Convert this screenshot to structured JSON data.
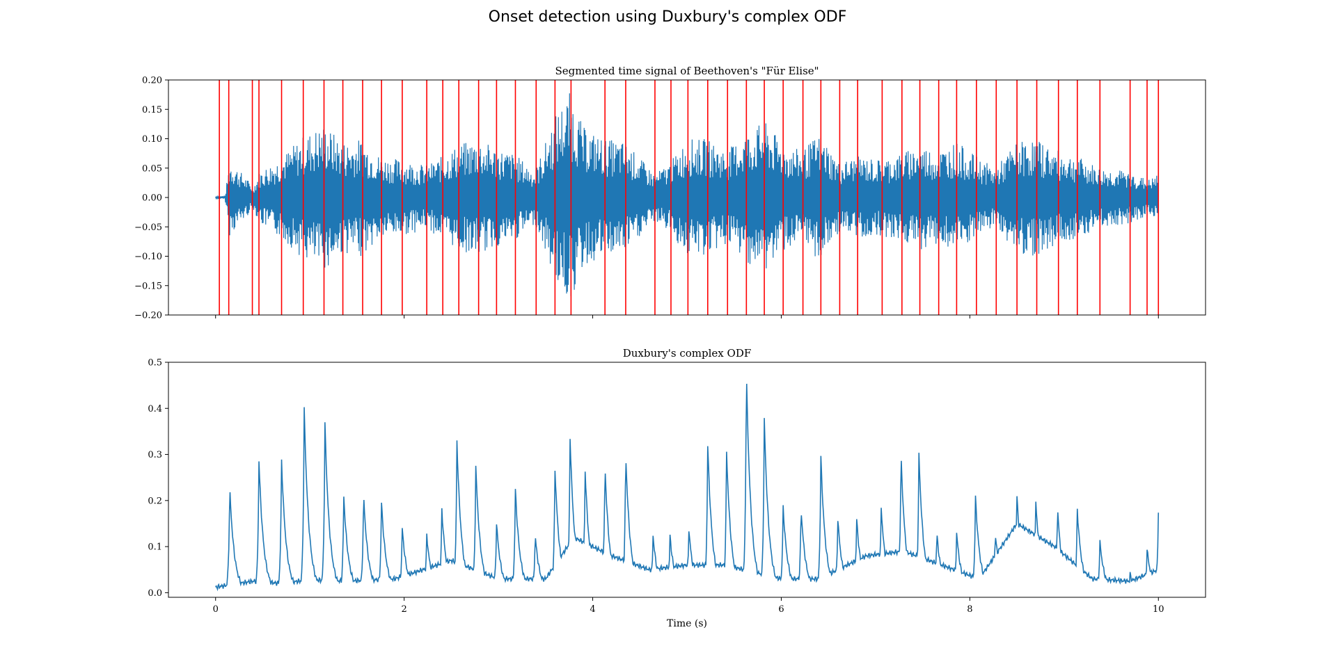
{
  "figure": {
    "suptitle": "Onset detection using Duxbury's complex ODF"
  },
  "chart_data": [
    {
      "type": "line",
      "title": "Segmented time signal of Beethoven's \"Für Elise\"",
      "xlabel": "",
      "ylabel": "",
      "xlim": [
        -0.5,
        10.5
      ],
      "ylim": [
        -0.2,
        0.2
      ],
      "x_ticks": [
        0,
        2,
        4,
        6,
        8,
        10
      ],
      "x_tick_labels_shown": false,
      "y_ticks": [
        -0.2,
        -0.15,
        -0.1,
        -0.05,
        0.0,
        0.05,
        0.1,
        0.15,
        0.2
      ],
      "y_tick_labels": [
        "−0.20",
        "−0.15",
        "−0.10",
        "−0.05",
        "0.00",
        "0.05",
        "0.10",
        "0.15",
        "0.20"
      ],
      "grid": false,
      "series": [
        {
          "kind": "waveform",
          "color": "#1f77b4",
          "x_start": 0.0,
          "x_end": 10.0,
          "envelope_x": [
            0.0,
            0.1,
            0.15,
            0.4,
            0.47,
            0.7,
            0.93,
            1.15,
            1.35,
            1.55,
            1.75,
            1.97,
            2.24,
            2.4,
            2.57,
            2.78,
            2.97,
            3.17,
            3.39,
            3.6,
            3.76,
            3.9,
            4.13,
            4.34,
            4.66,
            4.82,
            5.0,
            5.21,
            5.42,
            5.63,
            5.82,
            6.02,
            6.22,
            6.41,
            6.61,
            6.8,
            7.06,
            7.27,
            7.46,
            7.66,
            7.86,
            8.07,
            8.27,
            8.5,
            8.7,
            8.93,
            9.14,
            9.38,
            9.7,
            9.89,
            10.0
          ],
          "envelope_y": [
            0.002,
            0.003,
            0.065,
            0.02,
            0.045,
            0.07,
            0.105,
            0.125,
            0.095,
            0.1,
            0.07,
            0.065,
            0.055,
            0.07,
            0.09,
            0.1,
            0.085,
            0.075,
            0.045,
            0.14,
            0.18,
            0.12,
            0.1,
            0.095,
            0.04,
            0.06,
            0.1,
            0.1,
            0.08,
            0.11,
            0.13,
            0.09,
            0.08,
            0.11,
            0.06,
            0.07,
            0.065,
            0.075,
            0.09,
            0.08,
            0.095,
            0.07,
            0.05,
            0.095,
            0.1,
            0.08,
            0.07,
            0.05,
            0.045,
            0.03,
            0.04
          ]
        }
      ],
      "onsets": [
        0.04,
        0.14,
        0.39,
        0.46,
        0.7,
        0.93,
        1.15,
        1.35,
        1.56,
        1.76,
        1.98,
        2.24,
        2.41,
        2.58,
        2.79,
        2.98,
        3.18,
        3.4,
        3.6,
        3.77,
        4.13,
        4.35,
        4.66,
        4.83,
        5.01,
        5.22,
        5.43,
        5.63,
        5.82,
        6.02,
        6.23,
        6.42,
        6.62,
        6.81,
        7.07,
        7.28,
        7.47,
        7.67,
        7.86,
        8.07,
        8.28,
        8.5,
        8.71,
        8.94,
        9.14,
        9.38,
        9.7,
        9.88,
        10.0
      ],
      "onset_color": "#ff0000"
    },
    {
      "type": "line",
      "title": "Duxbury's complex ODF",
      "xlabel": "Time (s)",
      "ylabel": "",
      "xlim": [
        -0.5,
        10.5
      ],
      "ylim": [
        -0.01,
        0.5
      ],
      "x_ticks": [
        0,
        2,
        4,
        6,
        8,
        10
      ],
      "x_tick_labels": [
        "0",
        "2",
        "4",
        "6",
        "8",
        "10"
      ],
      "y_ticks": [
        0.0,
        0.1,
        0.2,
        0.3,
        0.4,
        0.5
      ],
      "y_tick_labels": [
        "0.0",
        "0.1",
        "0.2",
        "0.3",
        "0.4",
        "0.5"
      ],
      "grid": false,
      "series": [
        {
          "kind": "odf",
          "color": "#1f77b4",
          "baseline": [
            [
              0.0,
              0.012
            ],
            [
              0.4,
              0.025
            ],
            [
              0.7,
              0.02
            ],
            [
              1.0,
              0.028
            ],
            [
              1.4,
              0.025
            ],
            [
              1.9,
              0.03
            ],
            [
              2.2,
              0.05
            ],
            [
              2.5,
              0.07
            ],
            [
              3.0,
              0.03
            ],
            [
              3.5,
              0.03
            ],
            [
              3.8,
              0.12
            ],
            [
              4.2,
              0.08
            ],
            [
              4.6,
              0.05
            ],
            [
              5.0,
              0.06
            ],
            [
              5.4,
              0.06
            ],
            [
              6.0,
              0.03
            ],
            [
              6.4,
              0.03
            ],
            [
              6.9,
              0.08
            ],
            [
              7.3,
              0.09
            ],
            [
              7.7,
              0.06
            ],
            [
              8.1,
              0.03
            ],
            [
              8.5,
              0.15
            ],
            [
              8.9,
              0.1
            ],
            [
              9.3,
              0.03
            ],
            [
              9.7,
              0.025
            ],
            [
              10.0,
              0.05
            ]
          ],
          "peaks": [
            [
              0.15,
              0.228
            ],
            [
              0.46,
              0.287
            ],
            [
              0.7,
              0.286
            ],
            [
              0.94,
              0.398
            ],
            [
              1.16,
              0.367
            ],
            [
              1.36,
              0.208
            ],
            [
              1.57,
              0.212
            ],
            [
              1.76,
              0.196
            ],
            [
              1.98,
              0.14
            ],
            [
              2.24,
              0.125
            ],
            [
              2.4,
              0.18
            ],
            [
              2.56,
              0.328
            ],
            [
              2.76,
              0.275
            ],
            [
              2.98,
              0.15
            ],
            [
              3.18,
              0.224
            ],
            [
              3.39,
              0.125
            ],
            [
              3.6,
              0.268
            ],
            [
              3.76,
              0.337
            ],
            [
              3.92,
              0.265
            ],
            [
              4.13,
              0.276
            ],
            [
              4.35,
              0.302
            ],
            [
              4.64,
              0.124
            ],
            [
              4.82,
              0.124
            ],
            [
              5.02,
              0.138
            ],
            [
              5.22,
              0.321
            ],
            [
              5.42,
              0.305
            ],
            [
              5.63,
              0.48
            ],
            [
              5.82,
              0.376
            ],
            [
              6.02,
              0.185
            ],
            [
              6.21,
              0.183
            ],
            [
              6.42,
              0.295
            ],
            [
              6.6,
              0.16
            ],
            [
              6.8,
              0.16
            ],
            [
              7.06,
              0.185
            ],
            [
              7.27,
              0.3
            ],
            [
              7.46,
              0.3
            ],
            [
              7.65,
              0.13
            ],
            [
              7.86,
              0.13
            ],
            [
              8.06,
              0.207
            ],
            [
              8.27,
              0.13
            ],
            [
              8.5,
              0.21
            ],
            [
              8.7,
              0.2
            ],
            [
              8.93,
              0.185
            ],
            [
              9.14,
              0.18
            ],
            [
              9.38,
              0.11
            ],
            [
              9.7,
              0.04
            ],
            [
              9.88,
              0.094
            ],
            [
              10.0,
              0.178
            ]
          ]
        }
      ]
    }
  ]
}
